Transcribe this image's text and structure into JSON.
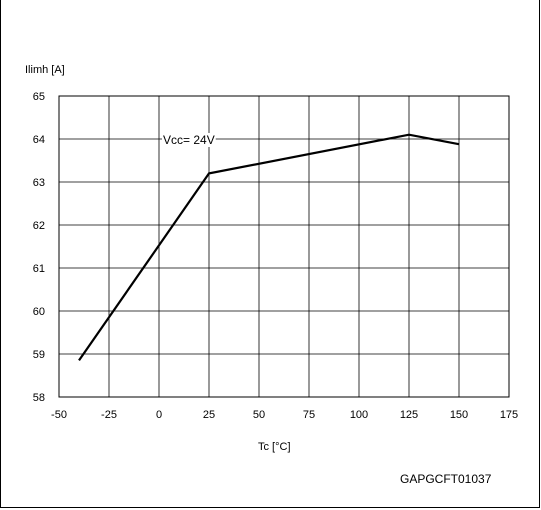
{
  "chart_data": {
    "type": "line",
    "ylabel": "Ilimh [A]",
    "xlabel": "Tc [°C]",
    "code": "GAPGCFT01037",
    "xlim": [
      -50,
      175
    ],
    "ylim": [
      58,
      65
    ],
    "xticks": [
      -50,
      -25,
      0,
      25,
      50,
      75,
      100,
      125,
      150,
      175
    ],
    "yticks": [
      58,
      59,
      60,
      61,
      62,
      63,
      64,
      65
    ],
    "grid": true,
    "series": [
      {
        "name": "Vcc= 24V",
        "x": [
          -40,
          25,
          125,
          150
        ],
        "y": [
          58.85,
          63.2,
          64.1,
          63.88
        ]
      }
    ]
  }
}
